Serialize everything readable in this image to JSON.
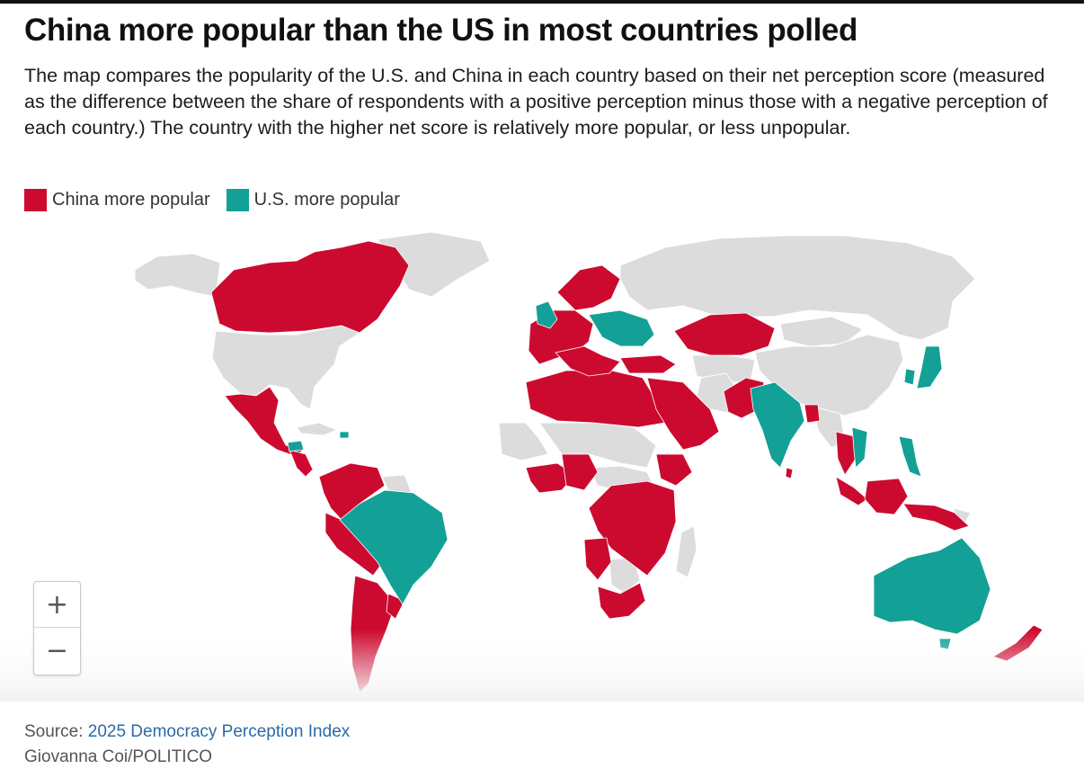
{
  "headline": "China more popular than the US in most countries polled",
  "dek": "The map compares the popularity of the U.S. and China in each country based on their net perception score (measured as the difference between the share of respondents with a positive perception minus those with a negative perception of each country.) The country with the higher net score is relatively more popular, or less unpopular.",
  "legend": [
    {
      "label": "China more popular",
      "color": "#cc0a2f"
    },
    {
      "label": "U.S. more popular",
      "color": "#13a096"
    }
  ],
  "colors": {
    "china": "#cc0a2f",
    "us": "#13a096",
    "no_data": "#dcdcdc",
    "border": "#ffffff"
  },
  "zoom": {
    "in_label": "+",
    "out_label": "−"
  },
  "source": {
    "prefix": "Source: ",
    "link_text": "2025 Democracy Perception Index"
  },
  "credit": "Giovanna Coi/POLITICO"
}
